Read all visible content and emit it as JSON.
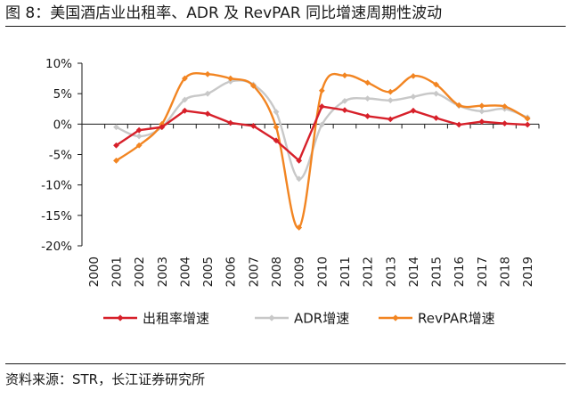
{
  "figure": {
    "title": "图 8：美国酒店业出租率、ADR 及 RevPAR 同比增速周期性波动",
    "source": "资料来源：STR，长江证券研究所"
  },
  "colors": {
    "occupancy": "#d7202a",
    "adr": "#c8c8c8",
    "revpar": "#f28522",
    "axis": "#1a1a1a"
  },
  "chart_data": {
    "type": "line",
    "title": "",
    "xlabel": "",
    "ylabel": "",
    "categories": [
      "2000",
      "2001",
      "2002",
      "2003",
      "2004",
      "2005",
      "2006",
      "2007",
      "2008",
      "2009",
      "2010",
      "2011",
      "2012",
      "2013",
      "2014",
      "2015",
      "2016",
      "2017",
      "2018",
      "2019"
    ],
    "ylim": [
      -20,
      10
    ],
    "y_ticks": [
      10,
      5,
      0,
      -5,
      -10,
      -15,
      -20
    ],
    "y_tick_labels": [
      "10%",
      "5%",
      "0%",
      "-5%",
      "-10%",
      "-15%",
      "-20%"
    ],
    "legend_position": "bottom",
    "series": [
      {
        "name": "出租率增速",
        "color_key": "occupancy",
        "smooth": false,
        "values": [
          null,
          -3.5,
          -1,
          -0.5,
          2.2,
          1.7,
          0.2,
          -0.3,
          -2.7,
          -6,
          2.9,
          2.3,
          1.3,
          0.8,
          2.2,
          1,
          -0.1,
          0.4,
          0.1,
          -0.1
        ]
      },
      {
        "name": "ADR增速",
        "color_key": "adr",
        "smooth": true,
        "values": [
          null,
          -0.5,
          -2,
          -0.5,
          4,
          5,
          7,
          6.5,
          2,
          -9,
          -0.1,
          3.8,
          4.2,
          3.9,
          4.5,
          5,
          3,
          2.1,
          2.5,
          1.1
        ]
      },
      {
        "name": "RevPAR增速",
        "color_key": "revpar",
        "smooth": true,
        "values": [
          null,
          -6,
          -3.5,
          0,
          7.5,
          8.2,
          7.5,
          6.3,
          -0.5,
          -17,
          5.5,
          8,
          6.8,
          5.3,
          7.9,
          6.5,
          3.1,
          3,
          2.9,
          0.9
        ]
      }
    ]
  }
}
